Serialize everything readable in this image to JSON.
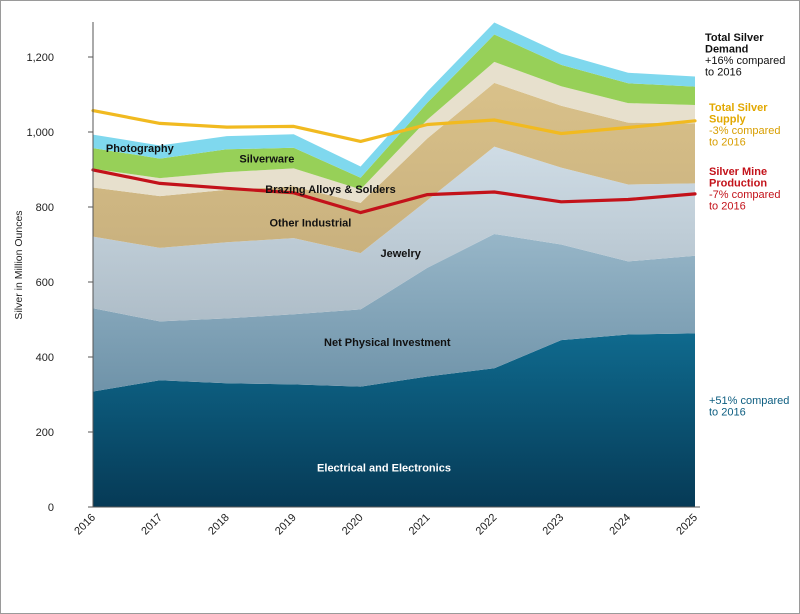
{
  "chart_data": {
    "type": "area",
    "stacked": true,
    "x": [
      "2016",
      "2017",
      "2018",
      "2019",
      "2020",
      "2021",
      "2022",
      "2023",
      "2024",
      "2025"
    ],
    "ylabel": "Silver in Million Ounces",
    "ylim": [
      0,
      1300
    ],
    "yticks": [
      "0",
      "200",
      "400",
      "600",
      "800",
      "1,000",
      "1,200"
    ],
    "series": [
      {
        "name": "Electrical and Electronics",
        "values": [
          308,
          338,
          330,
          327,
          321,
          348,
          370,
          445,
          460,
          463
        ],
        "color": "#0c5d80",
        "label_color": "light"
      },
      {
        "name": "Net Physical Investment",
        "values": [
          222,
          157,
          173,
          187,
          206,
          290,
          358,
          255,
          195,
          207
        ],
        "color": "#8aabc0",
        "label_color": "dark"
      },
      {
        "name": "Jewelry",
        "values": [
          191,
          196,
          203,
          203,
          150,
          180,
          233,
          205,
          205,
          193
        ],
        "color": "#c3d0da",
        "label_color": "dark"
      },
      {
        "name": "Other Industrial",
        "values": [
          131,
          138,
          140,
          138,
          134,
          165,
          170,
          165,
          165,
          160
        ],
        "color": "#d3bd88",
        "label_color": "dark"
      },
      {
        "name": "Brazing Alloys & Solders",
        "values": [
          50,
          48,
          47,
          48,
          36,
          50,
          56,
          52,
          52,
          49
        ],
        "color": "#e7e0cd",
        "label_color": "dark"
      },
      {
        "name": "Silverware",
        "values": [
          55,
          52,
          61,
          55,
          31,
          45,
          73,
          57,
          53,
          49
        ],
        "color": "#97d058",
        "label_color": "dark"
      },
      {
        "name": "Photography",
        "values": [
          36,
          35,
          35,
          36,
          30,
          30,
          32,
          30,
          28,
          27
        ],
        "color": "#7fd8ee",
        "label_color": "dark"
      }
    ],
    "lines": [
      {
        "name": "Total Silver Supply",
        "values": [
          1057,
          1023,
          1013,
          1015,
          975,
          1020,
          1032,
          996,
          1012,
          1030
        ],
        "color": "#f1ba20"
      },
      {
        "name": "Silver Mine Production",
        "values": [
          899,
          863,
          850,
          838,
          785,
          833,
          840,
          814,
          820,
          835
        ],
        "color": "#c3121a"
      }
    ],
    "annotations": [
      {
        "head": "Total Silver Demand",
        "text": "+16% compared to 2016",
        "head_color": "#111111",
        "text_color": "#111111"
      },
      {
        "head": "Total Silver Supply",
        "text": "-3% compared to 2016",
        "head_color": "#e2a800",
        "text_color": "#d89e00"
      },
      {
        "head": "Silver Mine Production",
        "text": "-7% compared to 2016",
        "head_color": "#c3121a",
        "text_color": "#c3121a"
      },
      {
        "head": "",
        "text": "+51% compared to 2016",
        "head_color": "#0c5d80",
        "text_color": "#0c5d80"
      }
    ],
    "grid": false,
    "legend": "inline"
  }
}
